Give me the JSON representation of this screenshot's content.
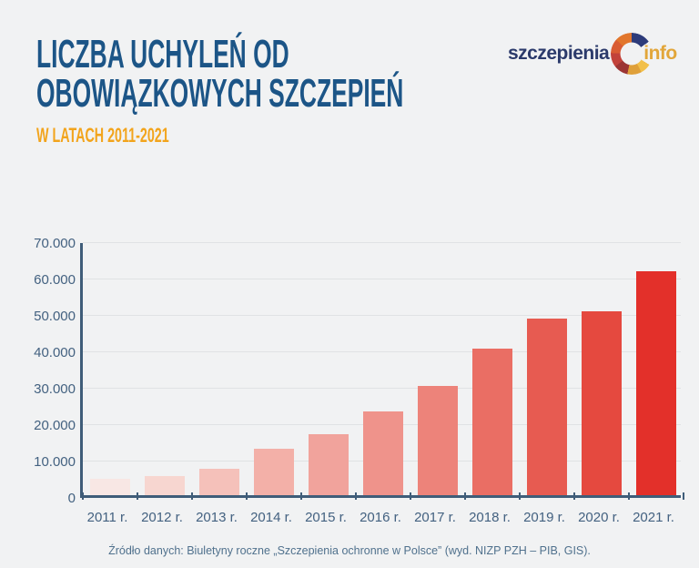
{
  "page": {
    "background": "#f1f2f3"
  },
  "header": {
    "title_line1": "LICZBA UCHYLEŃ OD",
    "title_line2": "OBOWIĄZKOWYCH SZCZEPIEŃ",
    "subtitle": "W LATACH 2011-2021",
    "title_color": "#1c5587",
    "subtitle_color": "#f2a41c"
  },
  "logo": {
    "text_main": "szczepienia",
    "text_suffix": "info",
    "text_main_color": "#2b3a6b",
    "text_suffix_color": "#e2a63a",
    "ring_segments": [
      {
        "from": 0,
        "to": 55,
        "color": "#2d3b7a"
      },
      {
        "from": 55,
        "to": 122,
        "color": "transparent"
      },
      {
        "from": 122,
        "to": 152,
        "color": "#f2c04a"
      },
      {
        "from": 152,
        "to": 192,
        "color": "#dfa03a"
      },
      {
        "from": 192,
        "to": 232,
        "color": "#9c3534"
      },
      {
        "from": 232,
        "to": 272,
        "color": "#c2423a"
      },
      {
        "from": 272,
        "to": 312,
        "color": "#d95c33"
      },
      {
        "from": 312,
        "to": 360,
        "color": "#e2762c"
      }
    ]
  },
  "chart_data": {
    "type": "bar",
    "title": "Liczba uchyleń od obowiązkowych szczepień w latach 2011-2021",
    "xlabel": "",
    "ylabel": "",
    "categories": [
      "2011 r.",
      "2012 r.",
      "2013 r.",
      "2014 r.",
      "2015 r.",
      "2016 r.",
      "2017 r.",
      "2018 r.",
      "2019 r.",
      "2020 r.",
      "2021 r."
    ],
    "values": [
      4500,
      5300,
      7200,
      12700,
      16700,
      23100,
      30100,
      40300,
      48600,
      50600,
      61400
    ],
    "bar_colors": [
      "#f8e7e4",
      "#f7d6d0",
      "#f5c1ba",
      "#f3b0a8",
      "#f1a39c",
      "#ef938b",
      "#ed837a",
      "#ea6e64",
      "#e75b51",
      "#e5493f",
      "#e3302a"
    ],
    "ylim": [
      0,
      70000
    ],
    "ytick_step": 10000,
    "ytick_labels": [
      "0",
      "10.000",
      "20.000",
      "30.000",
      "40.000",
      "50.000",
      "60.000",
      "70.000"
    ],
    "grid": true,
    "legend": false,
    "axis_color": "#3f5d79",
    "tick_label_color": "#436180"
  },
  "footer": {
    "source": "Źródło danych: Biuletyny roczne „Szczepienia ochronne w Polsce” (wyd. NIZP PZH – PIB, GIS)."
  }
}
